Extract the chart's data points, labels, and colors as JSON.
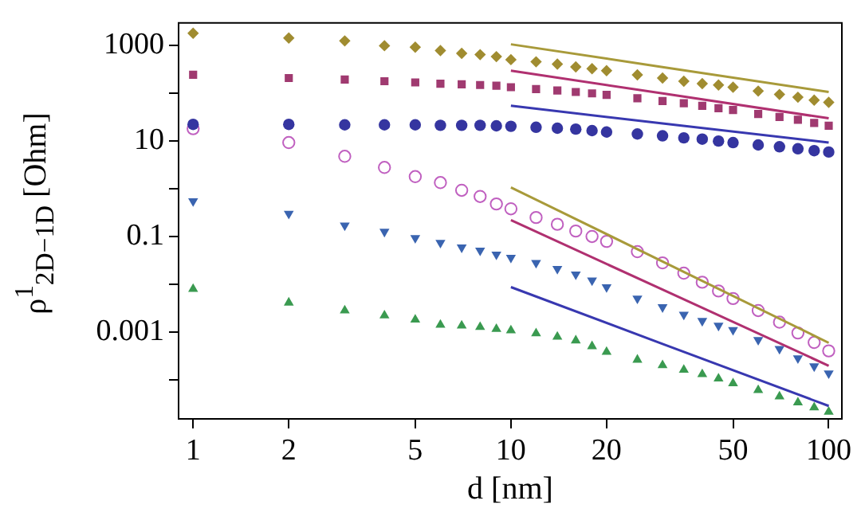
{
  "chart_data": {
    "type": "scatter",
    "xlabel": "d [nm]",
    "ylabel": "ρ$^{1}$$_{2D−1D}$ [Ohm]",
    "log": "xy",
    "grid": false,
    "legend": false,
    "xlim": [
      0.9,
      110
    ],
    "xticks": [
      1,
      2,
      5,
      10,
      20,
      50,
      100
    ],
    "ylim": [
      1.5e-05,
      3000
    ],
    "yticks": [
      1000,
      {
        "value": 100,
        "label": null
      },
      10,
      {
        "value": 1,
        "label": null
      },
      0.1,
      {
        "value": 0.01,
        "label": null
      },
      0.001,
      {
        "value": 0.0001,
        "label": null
      }
    ],
    "x": [
      1,
      2,
      3,
      4,
      5,
      6,
      7,
      8,
      9,
      10,
      12,
      14,
      16,
      18,
      20,
      25,
      30,
      35,
      40,
      45,
      50,
      60,
      70,
      80,
      90,
      100
    ],
    "series": [
      {
        "type": "scatter",
        "marker": "diamond",
        "color": "#a08c30",
        "values": [
          1820,
          1450,
          1260,
          1000,
          930,
          790,
          690,
          650,
          590,
          510,
          460,
          410,
          360,
          330,
          300,
          245,
          210,
          180,
          160,
          150,
          135,
          112,
          95,
          83,
          72,
          65
        ]
      },
      {
        "type": "scatter",
        "marker": "square",
        "color": "#a03a70",
        "values": [
          245,
          210,
          195,
          180,
          170,
          160,
          155,
          150,
          145,
          135,
          123,
          115,
          107,
          100,
          93,
          79,
          69,
          62,
          55,
          49,
          45,
          37,
          32,
          28,
          24,
          21
        ]
      },
      {
        "type": "scatter",
        "marker": "circle",
        "color": "#3535a0",
        "values": [
          22.4,
          22.4,
          21.9,
          21.9,
          21.9,
          21.4,
          21.4,
          21.4,
          20.9,
          20.4,
          19.5,
          18.6,
          17.8,
          16.6,
          15.5,
          14.1,
          12.9,
          11.7,
          11.0,
          10.0,
          9.3,
          8.3,
          7.6,
          6.9,
          6.3,
          5.9
        ]
      },
      {
        "type": "scatter",
        "marker": "circle-open",
        "color": "#c060c0",
        "values": [
          18.2,
          9.3,
          4.8,
          2.8,
          1.8,
          1.35,
          0.93,
          0.69,
          0.48,
          0.38,
          0.25,
          0.18,
          0.13,
          0.1,
          0.079,
          0.048,
          0.028,
          0.017,
          0.011,
          0.0072,
          0.005,
          0.0028,
          0.0016,
          0.00095,
          0.0006,
          0.0004
        ]
      },
      {
        "type": "scatter",
        "marker": "triangle-down",
        "color": "#3a64b0",
        "values": [
          0.55,
          0.3,
          0.17,
          0.126,
          0.093,
          0.074,
          0.059,
          0.051,
          0.042,
          0.036,
          0.028,
          0.021,
          0.016,
          0.012,
          0.0087,
          0.005,
          0.0033,
          0.0023,
          0.0017,
          0.00135,
          0.0011,
          0.00068,
          0.00044,
          0.00028,
          0.00019,
          0.000135
        ]
      },
      {
        "type": "scatter",
        "marker": "triangle",
        "color": "#3a9a50",
        "values": [
          0.0079,
          0.0041,
          0.0028,
          0.0022,
          0.0018,
          0.0014,
          0.00135,
          0.00126,
          0.00115,
          0.00107,
          0.00093,
          0.00079,
          0.00066,
          0.0005,
          0.00038,
          0.00026,
          0.0002,
          0.00016,
          0.00013,
          0.000105,
          8.3e-05,
          6e-05,
          4.4e-05,
          3.3e-05,
          2.6e-05,
          2.1e-05
        ]
      },
      {
        "type": "line",
        "color": "#a89a3a",
        "x": [
          10,
          30,
          100
        ],
        "values": [
          1070,
          357,
          107
        ]
      },
      {
        "type": "line",
        "color": "#b03070",
        "x": [
          10,
          30,
          100
        ],
        "values": [
          300,
          100,
          30
        ]
      },
      {
        "type": "line",
        "color": "#3838b0",
        "x": [
          10,
          30,
          100
        ],
        "values": [
          55,
          23.5,
          9.3
        ]
      },
      {
        "type": "line",
        "color": "#a89a3a",
        "x": [
          10,
          30,
          100
        ],
        "values": [
          1.07,
          0.03,
          0.00059
        ]
      },
      {
        "type": "line",
        "color": "#b03070",
        "x": [
          10,
          30,
          100
        ],
        "values": [
          0.22,
          0.0077,
          0.000195
        ]
      },
      {
        "type": "line",
        "color": "#3838b0",
        "x": [
          10,
          30,
          100
        ],
        "values": [
          0.0087,
          0.00056,
          2.8e-05
        ]
      }
    ]
  }
}
